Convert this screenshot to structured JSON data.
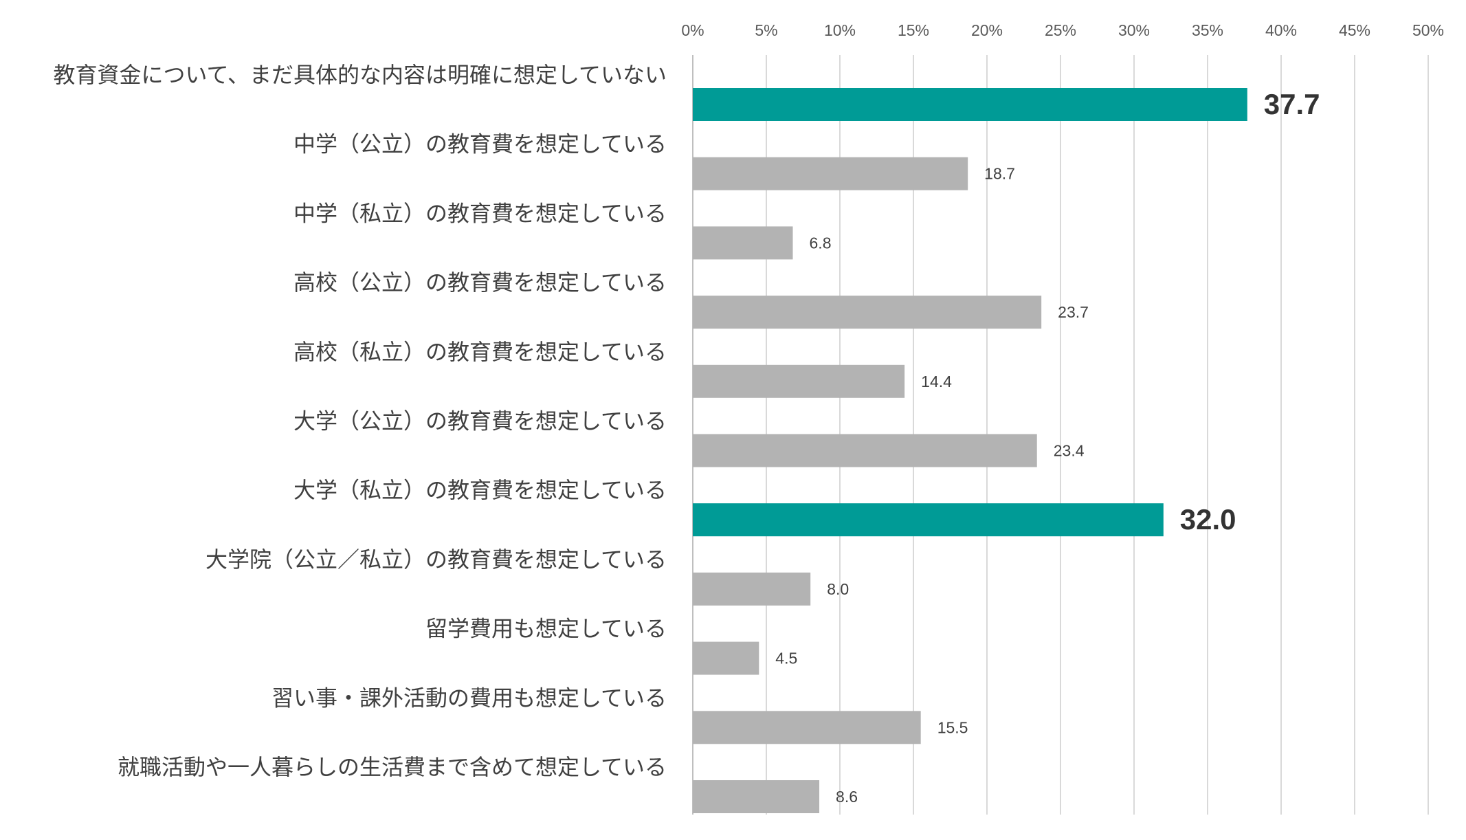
{
  "chart_data": {
    "type": "bar",
    "orientation": "horizontal",
    "title": "",
    "xlabel": "",
    "ylabel": "",
    "xlim": [
      0,
      50
    ],
    "x_ticks": [
      "0%",
      "5%",
      "10%",
      "15%",
      "20%",
      "25%",
      "30%",
      "35%",
      "40%",
      "45%",
      "50%"
    ],
    "x_tick_values": [
      0,
      5,
      10,
      15,
      20,
      25,
      30,
      35,
      40,
      45,
      50
    ],
    "grid": true,
    "legend": "none",
    "colors": {
      "default": "#b3b3b3",
      "highlight": "#009b96"
    },
    "categories": [
      "教育資金について、まだ具体的な内容は明確に想定していない",
      "中学（公立）の教育費を想定している",
      "中学（私立）の教育費を想定している",
      "高校（公立）の教育費を想定している",
      "高校（私立）の教育費を想定している",
      "大学（公立）の教育費を想定している",
      "大学（私立）の教育費を想定している",
      "大学院（公立／私立）の教育費を想定している",
      "留学費用も想定している",
      "習い事・課外活動の費用も想定している",
      "就職活動や一人暮らしの生活費まで含めて想定している"
    ],
    "values": [
      37.7,
      18.7,
      6.8,
      23.7,
      14.4,
      23.4,
      32.0,
      8.0,
      4.5,
      15.5,
      8.6
    ],
    "value_labels": [
      "37.7",
      "18.7",
      "6.8",
      "23.7",
      "14.4",
      "23.4",
      "32.0",
      "8.0",
      "4.5",
      "15.5",
      "8.6"
    ],
    "highlighted": [
      true,
      false,
      false,
      false,
      false,
      false,
      true,
      false,
      false,
      false,
      false
    ]
  }
}
